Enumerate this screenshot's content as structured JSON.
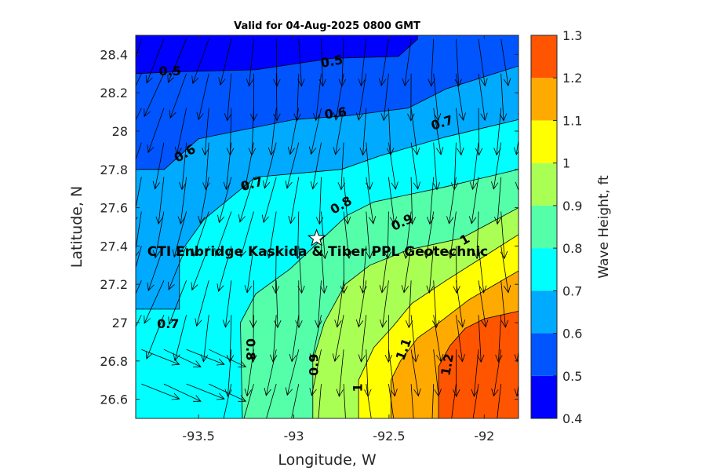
{
  "chart_data": {
    "type": "contour",
    "title": "Valid for 04-Aug-2025 0800 GMT",
    "xlabel": "Longitude, W",
    "ylabel": "Latitude, N",
    "xlim": [
      -93.83,
      -91.82
    ],
    "ylim": [
      26.5,
      28.5
    ],
    "xticks": [
      -93.5,
      -93,
      -92.5,
      -92
    ],
    "xtick_labels": [
      "-93.5",
      "-93",
      "-92.5",
      "-92"
    ],
    "yticks": [
      26.6,
      26.8,
      27,
      27.2,
      27.4,
      27.6,
      27.8,
      28,
      28.2,
      28.4
    ],
    "ytick_labels": [
      "26.6",
      "26.8",
      "27",
      "27.2",
      "27.4",
      "27.6",
      "27.8",
      "28",
      "28.2",
      "28.4"
    ],
    "colorbar": {
      "label": "Wave Height, ft",
      "levels": [
        0.4,
        0.5,
        0.6,
        0.7,
        0.8,
        0.9,
        1.0,
        1.1,
        1.2,
        1.3
      ],
      "tick_labels": [
        "0.4",
        "0.5",
        "0.6",
        "0.7",
        "0.8",
        "0.9",
        "1",
        "1.1",
        "1.2",
        "1.3"
      ],
      "colors": [
        "#0000ff",
        "#0055ff",
        "#00aaff",
        "#00ffff",
        "#55ffaa",
        "#aaff55",
        "#ffff00",
        "#ffaa00",
        "#ff5500"
      ]
    },
    "fill_bands": [
      {
        "level": 0.4,
        "polygon": [
          [
            -93.83,
            28.5
          ],
          [
            -92.0,
            28.5
          ],
          [
            -92.0,
            28.3
          ],
          [
            -93.83,
            28.3
          ]
        ]
      },
      {
        "level": 0.5,
        "polygon": [
          [
            -93.83,
            28.3
          ],
          [
            -93.6,
            28.31
          ],
          [
            -93.2,
            28.32
          ],
          [
            -92.8,
            28.38
          ],
          [
            -92.45,
            28.39
          ],
          [
            -92.35,
            28.48
          ],
          [
            -92.35,
            28.5
          ],
          [
            -91.82,
            28.5
          ],
          [
            -91.82,
            27.8
          ],
          [
            -93.83,
            27.8
          ]
        ]
      },
      {
        "level": 0.6,
        "polygon": [
          [
            -93.83,
            27.8
          ],
          [
            -93.68,
            27.8
          ],
          [
            -93.5,
            27.96
          ],
          [
            -93.3,
            28.0
          ],
          [
            -93.0,
            28.06
          ],
          [
            -92.72,
            28.08
          ],
          [
            -92.4,
            28.12
          ],
          [
            -92.2,
            28.22
          ],
          [
            -91.82,
            28.34
          ],
          [
            -91.82,
            26.5
          ],
          [
            -93.83,
            26.5
          ]
        ]
      },
      {
        "level": 0.7,
        "polygon": [
          [
            -91.82,
            28.06
          ],
          [
            -92.2,
            27.97
          ],
          [
            -92.55,
            27.87
          ],
          [
            -92.75,
            27.8
          ],
          [
            -93.2,
            27.76
          ],
          [
            -93.47,
            27.54
          ],
          [
            -93.6,
            27.36
          ],
          [
            -93.6,
            27.07
          ],
          [
            -93.83,
            27.07
          ],
          [
            -93.83,
            26.5
          ],
          [
            -91.82,
            26.5
          ]
        ]
      },
      {
        "level": 0.8,
        "polygon": [
          [
            -91.82,
            27.8
          ],
          [
            -92.2,
            27.71
          ],
          [
            -92.58,
            27.63
          ],
          [
            -92.72,
            27.56
          ],
          [
            -93.02,
            27.28
          ],
          [
            -93.2,
            27.15
          ],
          [
            -93.28,
            27.0
          ],
          [
            -93.27,
            26.5
          ],
          [
            -91.82,
            26.5
          ]
        ]
      },
      {
        "level": 0.9,
        "polygon": [
          [
            -91.82,
            27.6
          ],
          [
            -92.12,
            27.44
          ],
          [
            -92.4,
            27.38
          ],
          [
            -92.6,
            27.3
          ],
          [
            -92.73,
            27.2
          ],
          [
            -92.84,
            27.0
          ],
          [
            -92.9,
            26.8
          ],
          [
            -92.9,
            26.5
          ],
          [
            -91.82,
            26.5
          ]
        ]
      },
      {
        "level": 1.0,
        "polygon": [
          [
            -91.82,
            27.46
          ],
          [
            -92.2,
            27.22
          ],
          [
            -92.38,
            27.1
          ],
          [
            -92.48,
            26.98
          ],
          [
            -92.58,
            26.87
          ],
          [
            -92.66,
            26.7
          ],
          [
            -92.66,
            26.5
          ],
          [
            -91.82,
            26.5
          ]
        ]
      },
      {
        "level": 1.1,
        "polygon": [
          [
            -91.82,
            27.27
          ],
          [
            -92.08,
            27.12
          ],
          [
            -92.25,
            26.99
          ],
          [
            -92.35,
            26.92
          ],
          [
            -92.44,
            26.8
          ],
          [
            -92.49,
            26.7
          ],
          [
            -92.49,
            26.5
          ],
          [
            -91.82,
            26.5
          ]
        ]
      },
      {
        "level": 1.2,
        "polygon": [
          [
            -91.82,
            27.06
          ],
          [
            -92.0,
            27.02
          ],
          [
            -92.1,
            26.97
          ],
          [
            -92.18,
            26.88
          ],
          [
            -92.24,
            26.77
          ],
          [
            -92.24,
            26.5
          ],
          [
            -91.82,
            26.5
          ]
        ]
      }
    ],
    "contour_labels": [
      {
        "text": "0.5",
        "x": -93.65,
        "y": 28.31,
        "angle": 0
      },
      {
        "text": "0.5",
        "x": -92.8,
        "y": 28.36,
        "angle": -10
      },
      {
        "text": "0.6",
        "x": -93.57,
        "y": 27.88,
        "angle": -30
      },
      {
        "text": "0.6",
        "x": -92.78,
        "y": 28.09,
        "angle": -8
      },
      {
        "text": "0.7",
        "x": -92.22,
        "y": 28.04,
        "angle": -18
      },
      {
        "text": "0.7",
        "x": -93.22,
        "y": 27.72,
        "angle": -15
      },
      {
        "text": "0.7",
        "x": -93.66,
        "y": 26.99,
        "angle": 0
      },
      {
        "text": "0.8",
        "x": -92.75,
        "y": 27.61,
        "angle": -30
      },
      {
        "text": "0.8",
        "x": -93.23,
        "y": 26.86,
        "angle": 90
      },
      {
        "text": "0.9",
        "x": -92.43,
        "y": 27.52,
        "angle": -25
      },
      {
        "text": "0.9",
        "x": -92.89,
        "y": 26.78,
        "angle": -90
      },
      {
        "text": "1",
        "x": -92.1,
        "y": 27.43,
        "angle": -30
      },
      {
        "text": "1",
        "x": -92.66,
        "y": 26.66,
        "angle": -90
      },
      {
        "text": "1.1",
        "x": -92.42,
        "y": 26.86,
        "angle": -70
      },
      {
        "text": "1.2",
        "x": -92.19,
        "y": 26.78,
        "angle": -80
      }
    ],
    "site": {
      "label": "CTI Enbridge  Kaskida & Tiber PPL Geotechnic",
      "x": -92.88,
      "y": 27.44
    },
    "arrows_note": "wave direction vectors pointing mostly south"
  }
}
